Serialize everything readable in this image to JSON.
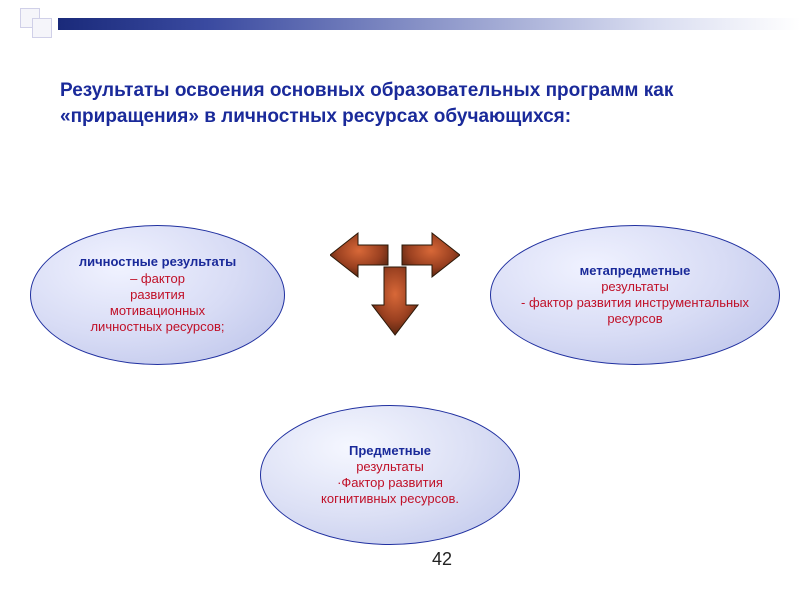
{
  "layout": {
    "slide_width": 800,
    "slide_height": 600,
    "background_color": "#ffffff"
  },
  "decoration": {
    "squares": {
      "border_color": "#d0d0e8",
      "fill_color": "#f5f5fa",
      "size": 20
    },
    "gradient_bar": {
      "height": 12,
      "colors": [
        "#1a2a7a",
        "#3a4aa0",
        "#8a94c8",
        "#d8dcf0",
        "#ffffff"
      ]
    }
  },
  "title": {
    "text": "Результаты освоения основных образовательных программ как «приращения» в личностных ресурсах обучающихся:",
    "color": "#1a2a9a",
    "font_size": 19,
    "font_weight": "bold"
  },
  "ellipses": {
    "border_color": "#2030a0",
    "fill_gradient": [
      "#f0f2ff",
      "#d8dcf5",
      "#b8c0e8"
    ],
    "title_color": "#1a2a9a",
    "body_color": "#c01028",
    "font_size": 13,
    "left": {
      "title": "личностные результаты",
      "body": "– фактор\nразвития\nмотивационных\nличностных  ресурсов;"
    },
    "right": {
      "title": "метапредметные",
      "body": "результаты\n- фактор развития инструментальных\nресурсов"
    },
    "bottom": {
      "title": "Предметные",
      "body": "результаты\n·Фактор развития\nкогнитивных  ресурсов."
    }
  },
  "arrows": {
    "type": "three-way-block-arrows",
    "directions": [
      "left",
      "right",
      "down"
    ],
    "fill_gradient": [
      "#c85028",
      "#7a3018",
      "#3a1808"
    ],
    "stroke_color": "#2a1808"
  },
  "page_number": "42"
}
